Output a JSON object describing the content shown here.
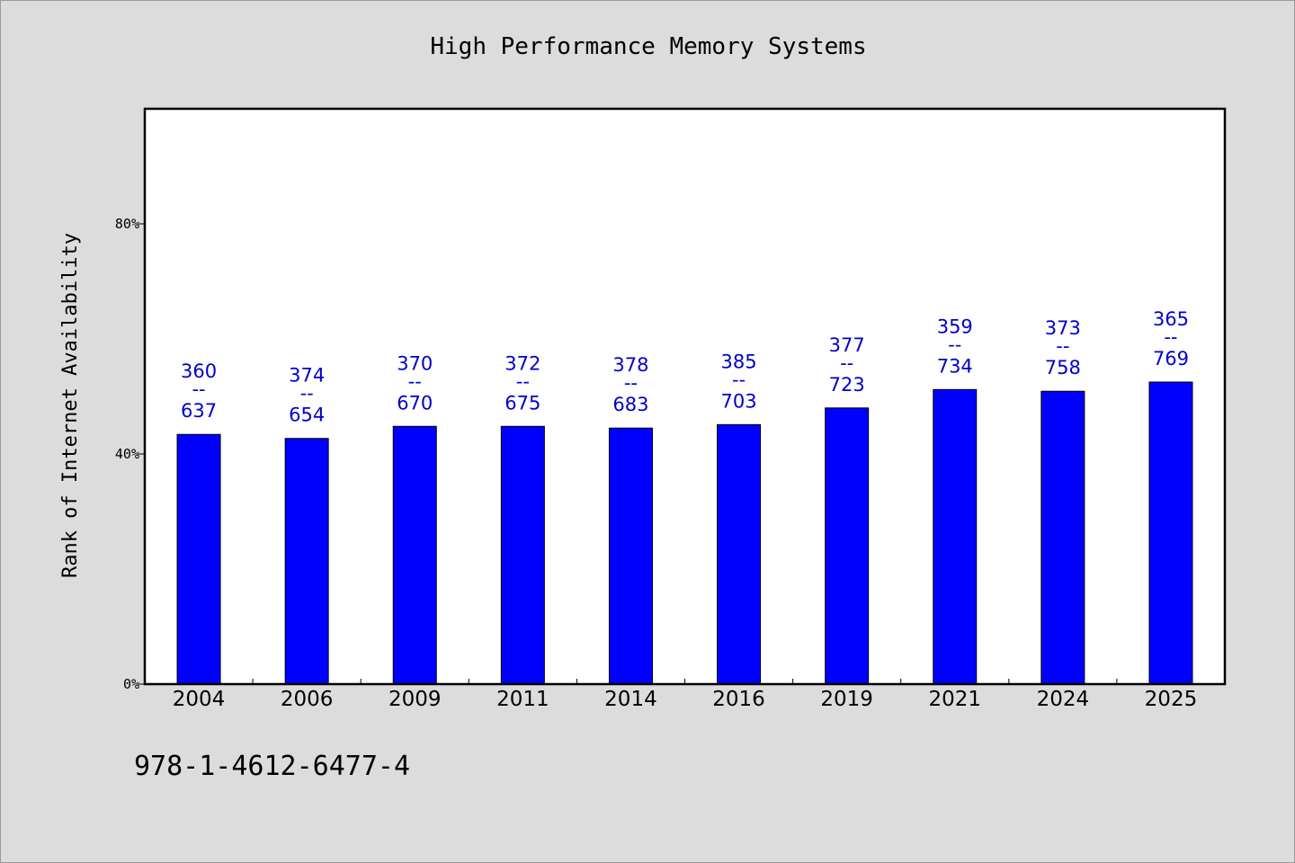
{
  "chart_data": {
    "type": "bar",
    "title": "High Performance Memory Systems",
    "ylabel": "Rank of Internet Availability",
    "xlabel": "",
    "categories": [
      "2004",
      "2006",
      "2009",
      "2011",
      "2014",
      "2016",
      "2019",
      "2021",
      "2024",
      "2025"
    ],
    "values": [
      43.4,
      42.7,
      44.8,
      44.8,
      44.5,
      45.1,
      48.0,
      51.2,
      50.9,
      52.5
    ],
    "label_top": [
      "360",
      "374",
      "370",
      "372",
      "378",
      "385",
      "377",
      "359",
      "373",
      "365"
    ],
    "label_sep": "--",
    "label_bottom": [
      "637",
      "654",
      "670",
      "675",
      "683",
      "703",
      "723",
      "734",
      "758",
      "769"
    ],
    "ylim": [
      0,
      100
    ],
    "yticks": [
      0,
      40,
      80
    ],
    "ytick_labels": [
      "0%",
      "40%",
      "80%"
    ],
    "grid": false,
    "bar_color": "#0000ff",
    "label_color": "#0000cc"
  },
  "footer": {
    "code": "978-1-4612-6477-4"
  }
}
